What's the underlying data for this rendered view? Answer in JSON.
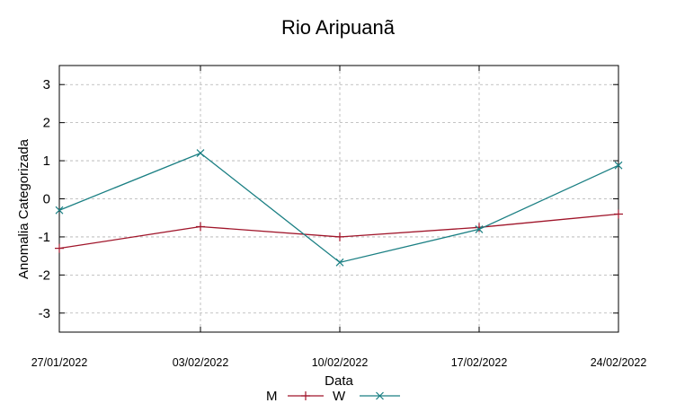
{
  "chart_data": {
    "type": "line",
    "title": "Rio Aripuanã",
    "xlabel": "Data",
    "ylabel": "Anomalia Categorizada",
    "categories": [
      "27/01/2022",
      "03/02/2022",
      "10/02/2022",
      "17/02/2022",
      "24/02/2022"
    ],
    "yticks": [
      "3",
      "2",
      "1",
      "0",
      "-1",
      "-2",
      "-3"
    ],
    "ylim": [
      -3.5,
      3.5
    ],
    "grid": true,
    "legend_position": "bottom",
    "series": [
      {
        "name": "M",
        "color": "#a0152a",
        "marker": "plus",
        "values": [
          -1.3,
          -0.73,
          -1.0,
          -0.75,
          -0.4
        ]
      },
      {
        "name": "W",
        "color": "#1a7f83",
        "marker": "cross",
        "values": [
          -0.3,
          1.2,
          -1.67,
          -0.8,
          0.88
        ]
      }
    ]
  }
}
